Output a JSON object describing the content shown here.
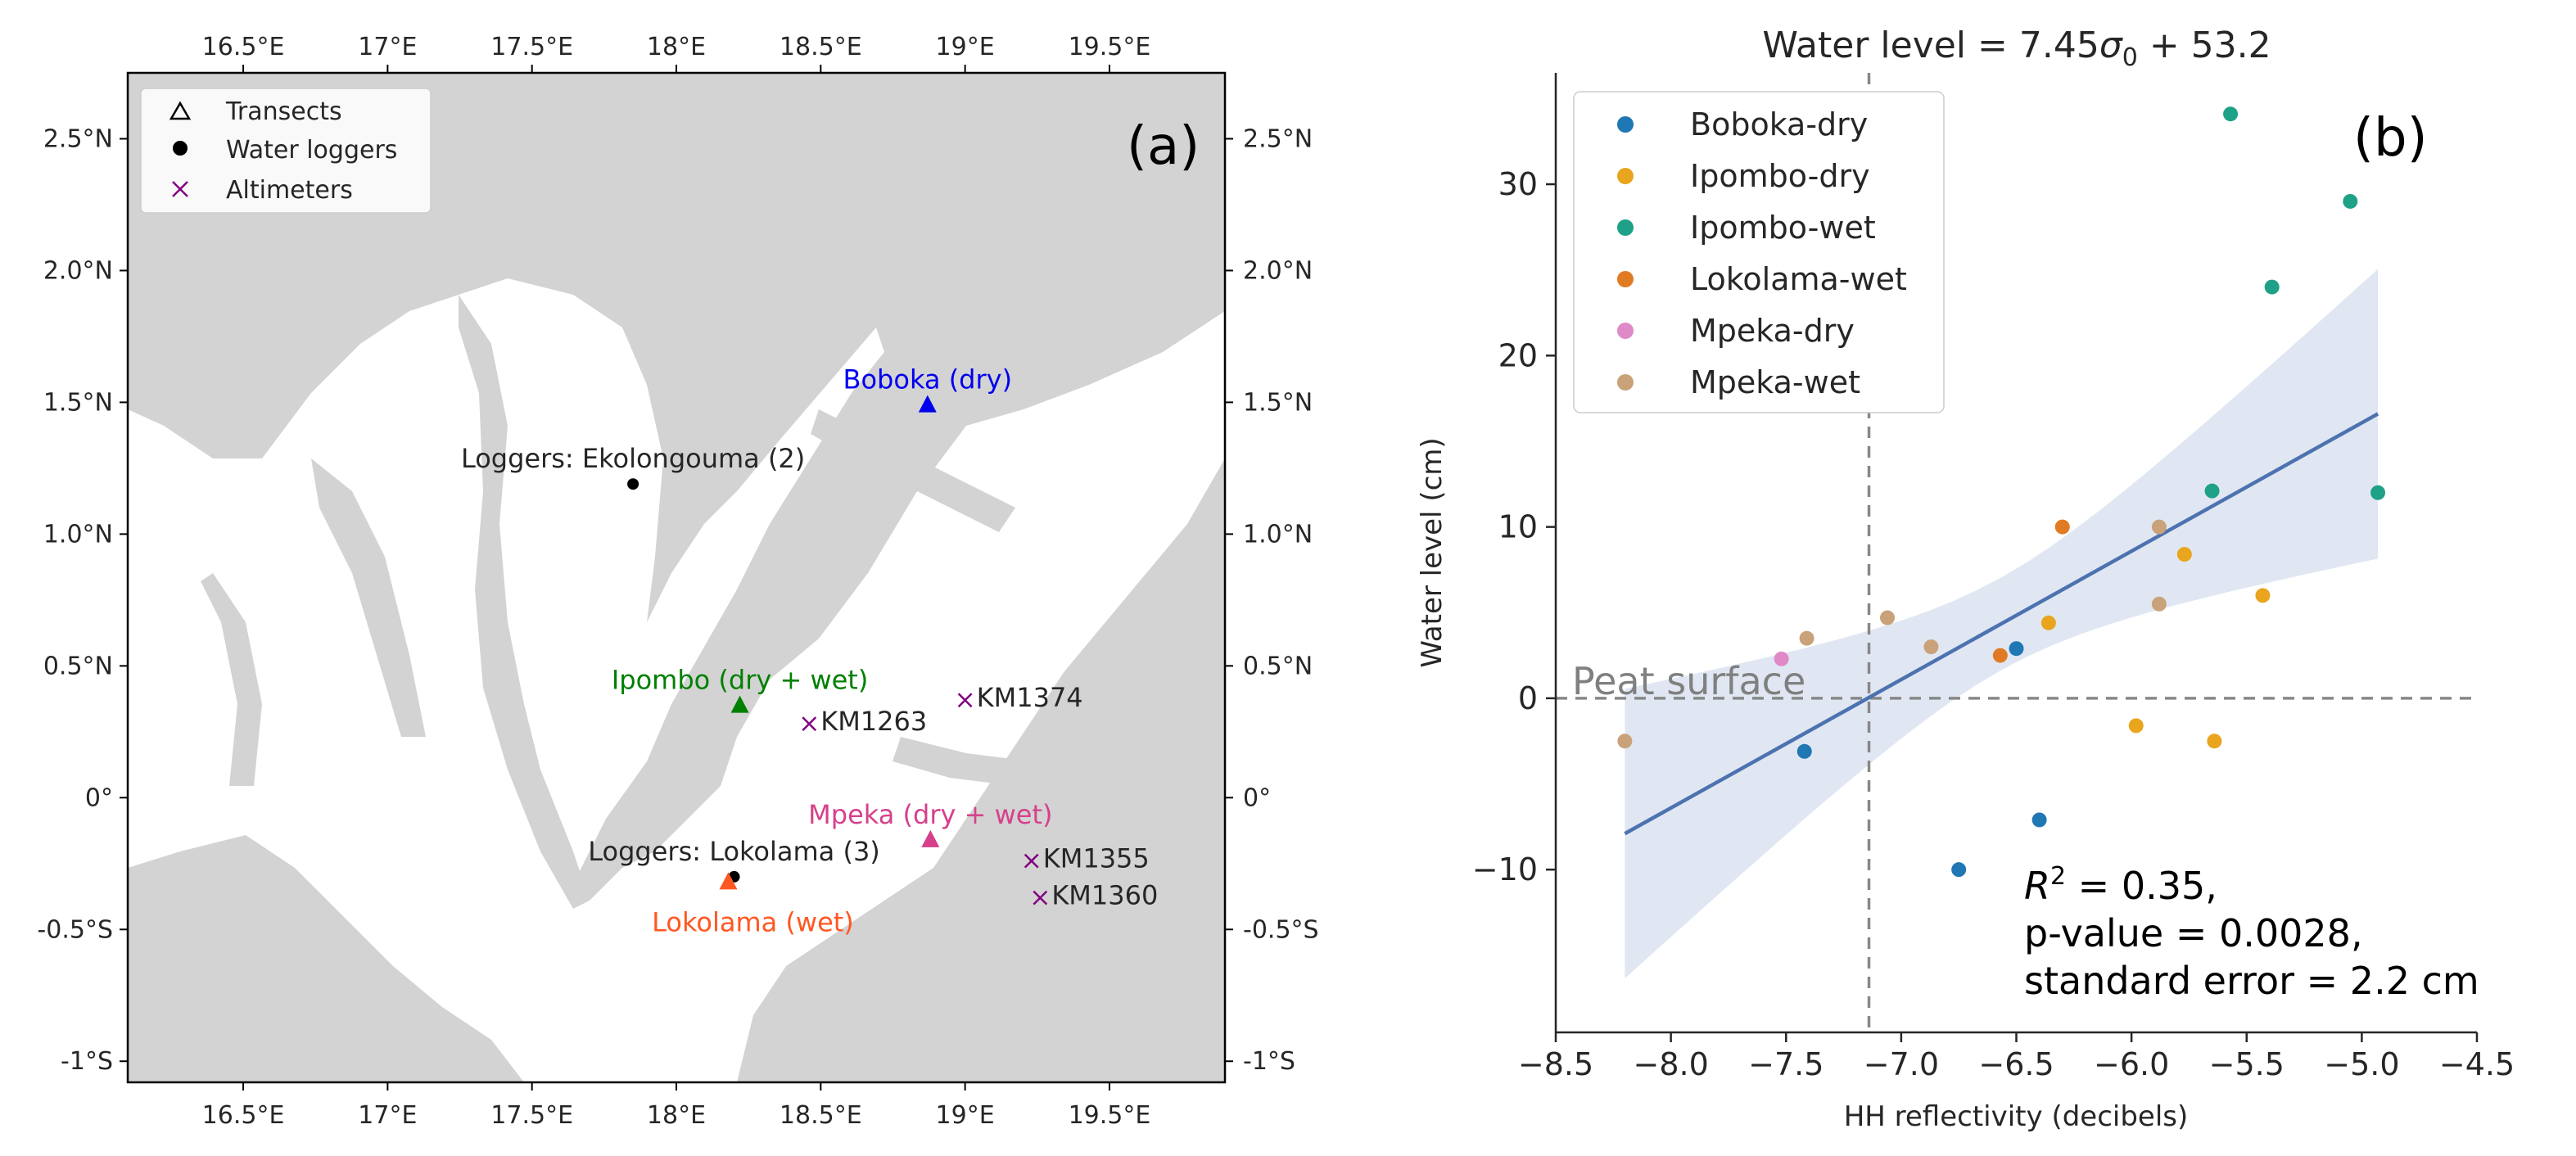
{
  "chart_data": [
    {
      "type": "map",
      "panel_label": "(a)",
      "x_ticks": [
        16.5,
        17,
        17.5,
        18,
        18.5,
        19,
        19.5
      ],
      "x_tick_labels": [
        "16.5°E",
        "17°E",
        "17.5°E",
        "18°E",
        "18.5°E",
        "19°E",
        "19.5°E"
      ],
      "y_ticks": [
        2.5,
        2.0,
        1.5,
        1.0,
        0.5,
        0,
        -0.5,
        -1
      ],
      "y_tick_labels": [
        "2.5°N",
        "2.0°N",
        "1.5°N",
        "1.0°N",
        "0.5°N",
        "0°",
        "-0.5°S",
        "-1°S"
      ],
      "xlim": [
        16.1,
        19.9
      ],
      "ylim": [
        -1.08,
        2.75
      ],
      "legend": [
        {
          "label": "Transects",
          "marker": "triangle-outline"
        },
        {
          "label": "Water loggers",
          "marker": "dot"
        },
        {
          "label": "Altimeters",
          "marker": "cross"
        }
      ],
      "legend_position": "top-left",
      "sites": [
        {
          "name": "Boboka (dry)",
          "lon": 18.87,
          "lat": 1.49,
          "marker": "triangle",
          "color": "#0000ee",
          "label_anchor": "above"
        },
        {
          "name": "Loggers: Ekolongouma (2)",
          "lon": 17.85,
          "lat": 1.19,
          "marker": "dot",
          "color": "#000000",
          "label_anchor": "above"
        },
        {
          "name": "Ipombo (dry + wet)",
          "lon": 18.22,
          "lat": 0.35,
          "marker": "triangle",
          "color": "#008000",
          "label_anchor": "above"
        },
        {
          "name": "KM1263",
          "lon": 18.46,
          "lat": 0.28,
          "marker": "cross",
          "color": "#800080",
          "label_anchor": "right"
        },
        {
          "name": "KM1374",
          "lon": 19.0,
          "lat": 0.37,
          "marker": "cross",
          "color": "#800080",
          "label_anchor": "right"
        },
        {
          "name": "Mpeka (dry + wet)",
          "lon": 18.88,
          "lat": -0.16,
          "marker": "triangle",
          "color": "#d6408b",
          "label_anchor": "above"
        },
        {
          "name": "KM1355",
          "lon": 19.23,
          "lat": -0.24,
          "marker": "cross",
          "color": "#800080",
          "label_anchor": "right"
        },
        {
          "name": "KM1360",
          "lon": 19.26,
          "lat": -0.38,
          "marker": "cross",
          "color": "#800080",
          "label_anchor": "right"
        },
        {
          "name": "Loggers: Lokolama (3)",
          "lon": 18.2,
          "lat": -0.3,
          "marker": "dot",
          "color": "#000000",
          "label_anchor": "above"
        },
        {
          "name": "Lokolama (wet)",
          "lon": 18.18,
          "lat": -0.32,
          "marker": "triangle",
          "color": "#ff5722",
          "label_anchor": "below"
        }
      ],
      "basemap_colors": {
        "peat": "#d3d3d3",
        "background": "#ffffff"
      }
    },
    {
      "type": "scatter",
      "panel_label": "(b)",
      "title": "Water level = 7.45σ0 + 53.2",
      "xlabel": "HH reflectivity (decibels)",
      "ylabel": "Water level (cm)",
      "xlim": [
        -8.5,
        -4.5
      ],
      "ylim": [
        -19.5,
        36.5
      ],
      "x_ticks": [
        -8.5,
        -8.0,
        -7.5,
        -7.0,
        -6.5,
        -6.0,
        -5.5,
        -5.0,
        -4.5
      ],
      "x_tick_labels": [
        "−8.5",
        "−8.0",
        "−7.5",
        "−7.0",
        "−6.5",
        "−6.0",
        "−5.5",
        "−5.0",
        "−4.5"
      ],
      "y_ticks": [
        -10,
        0,
        10,
        20,
        30
      ],
      "y_tick_labels": [
        "−10",
        "0",
        "10",
        "20",
        "30"
      ],
      "legend_position": "top-left",
      "series": [
        {
          "name": "Boboka-dry",
          "color": "#1f77b4",
          "points": [
            [
              -7.42,
              -3.1
            ],
            [
              -6.75,
              -10.0
            ],
            [
              -6.5,
              2.9
            ],
            [
              -6.4,
              -7.1
            ]
          ]
        },
        {
          "name": "Ipombo-dry",
          "color": "#e8a51d",
          "points": [
            [
              -6.36,
              4.4
            ],
            [
              -5.98,
              -1.6
            ],
            [
              -5.77,
              8.4
            ],
            [
              -5.64,
              -2.5
            ],
            [
              -5.43,
              6.0
            ]
          ]
        },
        {
          "name": "Ipombo-wet",
          "color": "#1fa187",
          "points": [
            [
              -5.65,
              12.1
            ],
            [
              -5.57,
              34.1
            ],
            [
              -5.39,
              24.0
            ],
            [
              -5.05,
              29.0
            ],
            [
              -4.93,
              12.0
            ]
          ]
        },
        {
          "name": "Lokolama-wet",
          "color": "#e07b24",
          "points": [
            [
              -6.57,
              2.5
            ],
            [
              -6.3,
              10.0
            ]
          ]
        },
        {
          "name": "Mpeka-dry",
          "color": "#e089c7",
          "points": [
            [
              -7.52,
              2.3
            ]
          ]
        },
        {
          "name": "Mpeka-wet",
          "color": "#c9a27a",
          "points": [
            [
              -8.2,
              -2.5
            ],
            [
              -7.41,
              3.5
            ],
            [
              -7.06,
              4.7
            ],
            [
              -6.87,
              3.0
            ],
            [
              -5.88,
              10.0
            ],
            [
              -5.88,
              5.5
            ]
          ]
        }
      ],
      "regression": {
        "x": [
          -8.2,
          -4.93
        ],
        "y": [
          -7.9,
          16.6
        ],
        "ci_lower": [
          -17.0,
          8.9
        ],
        "ci_upper": [
          1.4,
          24.3
        ],
        "color": "#4c72b0",
        "band_color": "#dde4f2"
      },
      "reference_lines": {
        "vertical_x": -7.14,
        "horizontal_y": 0,
        "horizontal_label": "Peat surface"
      },
      "stats": {
        "r2_line": "R² = 0.35,",
        "p_line": "p-value = 0.0028,",
        "se_line": "standard error = 2.2 cm"
      }
    }
  ]
}
